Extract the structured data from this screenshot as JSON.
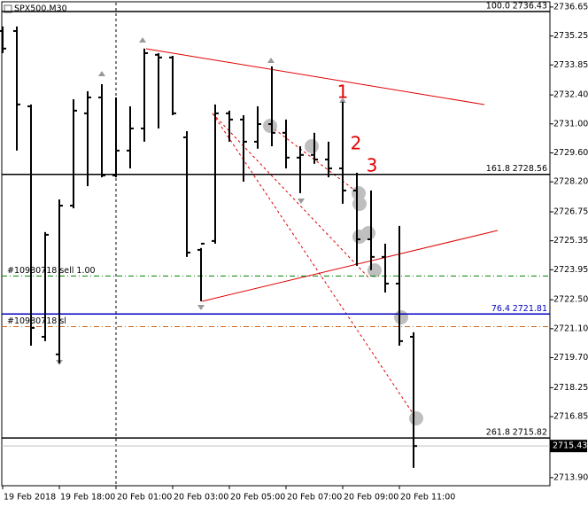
{
  "chart_data": {
    "type": "ohlc",
    "title": "SPX500,M30",
    "categories": [
      "19 Feb 2018",
      null,
      null,
      null,
      "19 Feb 18:00",
      null,
      null,
      null,
      "20 Feb 01:00",
      null,
      null,
      null,
      "20 Feb 03:00",
      null,
      null,
      null,
      "20 Feb 05:00",
      null,
      null,
      null,
      "20 Feb 07:00",
      null,
      null,
      null,
      "20 Feb 09:00",
      null,
      null,
      null,
      "20 Feb 11:00",
      null
    ],
    "open": [
      2735.49,
      2735.49,
      2731.85,
      2720.71,
      2719.86,
      2727.05,
      2731.51,
      2732.28,
      2728.51,
      2729.71,
      2730.78,
      2734.34,
      2734.21,
      2730.35,
      2724.91,
      2725.34,
      2731.51,
      2731.21,
      2730.14,
      2730.99,
      2730.57,
      2729.37,
      2729.5,
      2729.28,
      2728.85,
      2727.78,
      2725.42,
      2724.57,
      2723.28,
      2720.71
    ],
    "high": [
      2735.71,
      2735.71,
      2731.94,
      2725.77,
      2727.35,
      2732.19,
      2732.58,
      2732.92,
      2732.28,
      2731.85,
      2734.64,
      2734.42,
      2734.29,
      2730.65,
      2725.0,
      2731.94,
      2731.64,
      2731.42,
      2731.85,
      2733.78,
      2731.21,
      2729.92,
      2730.57,
      2730.14,
      2732.07,
      2728.64,
      2727.78,
      2725.21,
      2726.07,
      2720.93
    ],
    "low": [
      2734.42,
      2729.71,
      2720.28,
      2720.5,
      2719.43,
      2726.92,
      2727.99,
      2728.42,
      2728.42,
      2728.85,
      2730.14,
      2730.78,
      2731.42,
      2724.57,
      2722.43,
      2725.21,
      2730.14,
      2728.21,
      2729.8,
      2729.92,
      2728.85,
      2727.65,
      2729.07,
      2728.42,
      2727.14,
      2724.14,
      2723.93,
      2722.85,
      2720.28,
      2714.37
    ],
    "close": [
      2734.64,
      2731.94,
      2721.14,
      2725.64,
      2727.05,
      2731.64,
      2732.28,
      2728.51,
      2729.71,
      2730.78,
      2734.42,
      2734.21,
      2731.51,
      2724.78,
      2725.21,
      2731.51,
      2731.21,
      2730.14,
      2730.99,
      2730.57,
      2729.37,
      2729.5,
      2729.28,
      2728.85,
      2727.78,
      2725.42,
      2724.57,
      2723.28,
      2720.5,
      2715.43
    ],
    "color": "#000000",
    "ylim": [
      2713.51,
      2736.86
    ],
    "yticks": [
      2736.65,
      2735.25,
      2733.85,
      {
        "value": 2732.4,
        "label": "2732.40"
      },
      {
        "value": 2731.0,
        "label": "2731.00"
      },
      {
        "value": 2729.6,
        "label": "2729.60"
      },
      {
        "value": 2728.2,
        "label": "2728.20"
      },
      2726.75,
      2725.35,
      2723.95,
      {
        "value": 2722.5,
        "label": "2722.50"
      },
      {
        "value": 2721.1,
        "label": "2721.10"
      },
      {
        "value": 2719.7,
        "label": "2719.70"
      },
      2718.25,
      2716.85,
      {
        "value": 2713.9,
        "label": "2713.90"
      }
    ],
    "current_price": 2715.43,
    "levels": [
      {
        "ratio": "100.0",
        "value": 2736.43,
        "color": "#000000"
      },
      {
        "ratio": "161.8",
        "value": 2728.56,
        "color": "#000000"
      },
      {
        "ratio": "76.4",
        "value": 2721.81,
        "color": "#0000c0"
      },
      {
        "ratio": "261.8",
        "value": 2715.82,
        "color": "#000000"
      }
    ],
    "orders": [
      {
        "label": "#10980718 sell 1.00",
        "value": 2723.65,
        "color": "#008000"
      },
      {
        "label": "#10980718 sl",
        "value": 2721.2,
        "color": "#d2691e"
      }
    ],
    "annotations": [
      "1",
      "2",
      "3"
    ]
  }
}
